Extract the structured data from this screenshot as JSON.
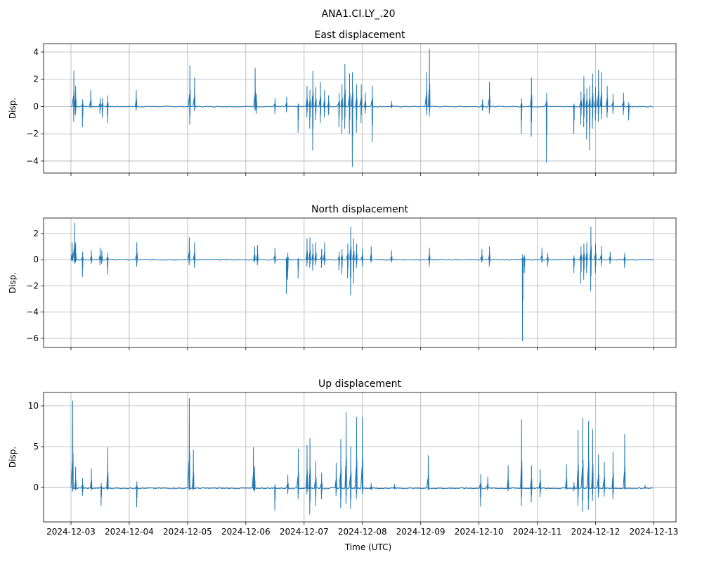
{
  "chart_data": {
    "type": "line",
    "title": "ANA1.CI.LY_.20",
    "xlabel": "Time (UTC)",
    "x_unit": "days since 2024-12-03 00:00 UTC",
    "xlim": [
      -0.47,
      10.38
    ],
    "xticks": [
      0,
      1,
      2,
      3,
      4,
      5,
      6,
      7,
      8,
      9,
      10
    ],
    "xtick_labels": [
      "2024-12-03",
      "2024-12-04",
      "2024-12-05",
      "2024-12-06",
      "2024-12-07",
      "2024-12-08",
      "2024-12-09",
      "2024-12-10",
      "2024-12-11",
      "2024-12-12",
      "2024-12-13"
    ],
    "grid": true,
    "color": "#1f77b4",
    "subplots": [
      {
        "title": "East displacement",
        "ylabel": "Disp.",
        "ylim": [
          -4.88,
          4.62
        ],
        "yticks": [
          -4,
          -2,
          0,
          2,
          4
        ],
        "baseline": 0,
        "spikes_note": "[day, max, min]",
        "spikes": [
          [
            0.05,
            2.6,
            -1.1
          ],
          [
            0.08,
            1.5,
            -0.6
          ],
          [
            0.2,
            0.5,
            -1.5
          ],
          [
            0.34,
            1.2,
            -0.1
          ],
          [
            0.5,
            0.6,
            -0.5
          ],
          [
            0.54,
            0.6,
            -0.8
          ],
          [
            0.63,
            0.8,
            -1.2
          ],
          [
            1.12,
            1.2,
            -0.3
          ],
          [
            2.04,
            3.0,
            -1.3
          ],
          [
            2.12,
            2.1,
            -0.3
          ],
          [
            3.16,
            2.8,
            -0.3
          ],
          [
            3.18,
            0.9,
            -0.5
          ],
          [
            3.5,
            0.6,
            -0.5
          ],
          [
            3.7,
            0.7,
            -0.4
          ],
          [
            3.9,
            0.2,
            -1.9
          ],
          [
            4.05,
            1.5,
            -0.8
          ],
          [
            4.1,
            1.2,
            -1.6
          ],
          [
            4.15,
            2.6,
            -3.2
          ],
          [
            4.2,
            1.4,
            -1.0
          ],
          [
            4.28,
            1.8,
            -1.2
          ],
          [
            4.35,
            1.2,
            -0.8
          ],
          [
            4.42,
            0.8,
            -0.6
          ],
          [
            4.6,
            1.0,
            -1.5
          ],
          [
            4.65,
            1.6,
            -2.0
          ],
          [
            4.7,
            3.1,
            -1.6
          ],
          [
            4.78,
            2.4,
            -2.0
          ],
          [
            4.83,
            2.5,
            -4.4
          ],
          [
            4.9,
            1.6,
            -1.9
          ],
          [
            4.98,
            1.6,
            -1.2
          ],
          [
            5.05,
            1.0,
            -0.5
          ],
          [
            5.17,
            1.5,
            -2.6
          ],
          [
            5.5,
            0.4,
            -0.1
          ],
          [
            6.1,
            2.5,
            -0.6
          ],
          [
            6.15,
            4.2,
            -0.7
          ],
          [
            7.06,
            0.5,
            -0.3
          ],
          [
            7.18,
            1.8,
            -0.5
          ],
          [
            7.73,
            0.6,
            -2.0
          ],
          [
            7.9,
            2.1,
            -2.2
          ],
          [
            8.16,
            1.0,
            -4.1
          ],
          [
            8.63,
            0.2,
            -2.0
          ],
          [
            8.75,
            1.1,
            -1.3
          ],
          [
            8.8,
            2.2,
            -1.5
          ],
          [
            8.85,
            1.3,
            -2.4
          ],
          [
            8.9,
            1.5,
            -3.2
          ],
          [
            8.95,
            2.4,
            -1.6
          ],
          [
            9.0,
            1.4,
            -1.0
          ],
          [
            9.05,
            2.7,
            -1.1
          ],
          [
            9.1,
            2.5,
            -0.9
          ],
          [
            9.2,
            1.5,
            -0.8
          ],
          [
            9.3,
            0.9,
            -0.5
          ],
          [
            9.48,
            1.0,
            -0.6
          ],
          [
            9.57,
            0.3,
            -1.0
          ]
        ]
      },
      {
        "title": "North displacement",
        "ylabel": "Disp.",
        "ylim": [
          -6.7,
          3.18
        ],
        "yticks": [
          -6,
          -4,
          -2,
          0,
          2
        ],
        "baseline": 0,
        "spikes_note": "[day, max, min]",
        "spikes": [
          [
            0.02,
            1.3,
            -0.1
          ],
          [
            0.06,
            2.8,
            -0.3
          ],
          [
            0.08,
            1.3,
            -0.2
          ],
          [
            0.2,
            0.6,
            -1.3
          ],
          [
            0.35,
            0.7,
            -0.3
          ],
          [
            0.5,
            0.9,
            -0.4
          ],
          [
            0.53,
            0.7,
            -0.3
          ],
          [
            0.63,
            0.5,
            -1.1
          ],
          [
            1.13,
            1.3,
            -0.5
          ],
          [
            2.03,
            1.7,
            -0.4
          ],
          [
            2.12,
            1.3,
            -0.6
          ],
          [
            3.15,
            1.0,
            -0.2
          ],
          [
            3.2,
            1.1,
            -0.4
          ],
          [
            3.5,
            0.9,
            -0.3
          ],
          [
            3.7,
            0.2,
            -2.6
          ],
          [
            3.72,
            0.5,
            -1.5
          ],
          [
            3.9,
            0.1,
            -1.4
          ],
          [
            4.05,
            1.6,
            -0.5
          ],
          [
            4.1,
            1.7,
            -0.6
          ],
          [
            4.15,
            1.2,
            -0.8
          ],
          [
            4.2,
            1.3,
            -0.4
          ],
          [
            4.3,
            0.8,
            -0.6
          ],
          [
            4.35,
            1.3,
            -0.4
          ],
          [
            4.6,
            0.6,
            -0.8
          ],
          [
            4.65,
            0.8,
            -1.1
          ],
          [
            4.75,
            1.2,
            -1.4
          ],
          [
            4.8,
            2.5,
            -2.7
          ],
          [
            4.85,
            1.6,
            -1.8
          ],
          [
            4.9,
            1.2,
            -0.6
          ],
          [
            5.0,
            0.8,
            -0.5
          ],
          [
            5.15,
            1.0,
            -0.2
          ],
          [
            5.5,
            0.7,
            -0.2
          ],
          [
            6.15,
            0.9,
            -0.5
          ],
          [
            7.05,
            0.8,
            -0.2
          ],
          [
            7.18,
            1.0,
            -0.5
          ],
          [
            7.75,
            0.4,
            -6.2
          ],
          [
            7.78,
            0.3,
            -1.0
          ],
          [
            8.08,
            0.9,
            -0.2
          ],
          [
            8.18,
            0.5,
            -0.5
          ],
          [
            8.63,
            0.3,
            -1.0
          ],
          [
            8.75,
            1.0,
            -1.8
          ],
          [
            8.8,
            1.2,
            -1.5
          ],
          [
            8.85,
            1.3,
            -1.0
          ],
          [
            8.92,
            2.5,
            -2.4
          ],
          [
            9.0,
            1.2,
            -1.0
          ],
          [
            9.1,
            1.0,
            -0.5
          ],
          [
            9.25,
            0.6,
            -0.3
          ],
          [
            9.5,
            0.5,
            -0.6
          ]
        ]
      },
      {
        "title": "Up displacement",
        "ylabel": "Disp.",
        "ylim": [
          -4.22,
          11.64
        ],
        "yticks": [
          0,
          5,
          10
        ],
        "baseline": -0.1,
        "spikes_note": "[day, max, min]",
        "spikes": [
          [
            0.03,
            10.6,
            -0.5
          ],
          [
            0.08,
            2.5,
            -0.3
          ],
          [
            0.2,
            1.1,
            -1.0
          ],
          [
            0.35,
            2.3,
            -0.3
          ],
          [
            0.52,
            0.5,
            -2.2
          ],
          [
            0.63,
            4.9,
            -0.3
          ],
          [
            1.13,
            0.7,
            -2.4
          ],
          [
            2.03,
            10.9,
            -0.3
          ],
          [
            2.1,
            4.6,
            -0.3
          ],
          [
            3.13,
            4.9,
            -0.3
          ],
          [
            3.15,
            2.5,
            -0.5
          ],
          [
            3.5,
            0.4,
            -2.8
          ],
          [
            3.72,
            1.5,
            -0.8
          ],
          [
            3.9,
            4.7,
            -1.4
          ],
          [
            4.05,
            5.2,
            -0.8
          ],
          [
            4.1,
            6.0,
            -3.3
          ],
          [
            4.2,
            3.2,
            -2.2
          ],
          [
            4.3,
            1.8,
            -1.4
          ],
          [
            4.55,
            3.0,
            -1.0
          ],
          [
            4.63,
            5.9,
            -2.5
          ],
          [
            4.72,
            9.2,
            -2.0
          ],
          [
            4.8,
            5.0,
            -2.6
          ],
          [
            4.9,
            8.6,
            -1.4
          ],
          [
            5.0,
            8.6,
            -0.8
          ],
          [
            5.15,
            0.5,
            -0.3
          ],
          [
            5.55,
            0.4,
            -0.2
          ],
          [
            6.13,
            3.9,
            -0.3
          ],
          [
            7.03,
            1.6,
            -2.3
          ],
          [
            7.15,
            1.3,
            -0.3
          ],
          [
            7.5,
            2.7,
            -0.4
          ],
          [
            7.73,
            8.3,
            -2.2
          ],
          [
            7.9,
            2.7,
            -1.8
          ],
          [
            8.05,
            2.2,
            -1.2
          ],
          [
            8.5,
            2.8,
            -0.2
          ],
          [
            8.63,
            0.6,
            -0.4
          ],
          [
            8.7,
            7.0,
            -2.2
          ],
          [
            8.78,
            8.5,
            -3.0
          ],
          [
            8.88,
            8.1,
            -2.7
          ],
          [
            8.95,
            7.1,
            -1.6
          ],
          [
            9.05,
            4.0,
            -1.2
          ],
          [
            9.15,
            3.1,
            -1.1
          ],
          [
            9.3,
            4.3,
            -1.4
          ],
          [
            9.5,
            6.5,
            -0.2
          ],
          [
            9.85,
            0.3,
            -0.1
          ]
        ]
      }
    ]
  }
}
